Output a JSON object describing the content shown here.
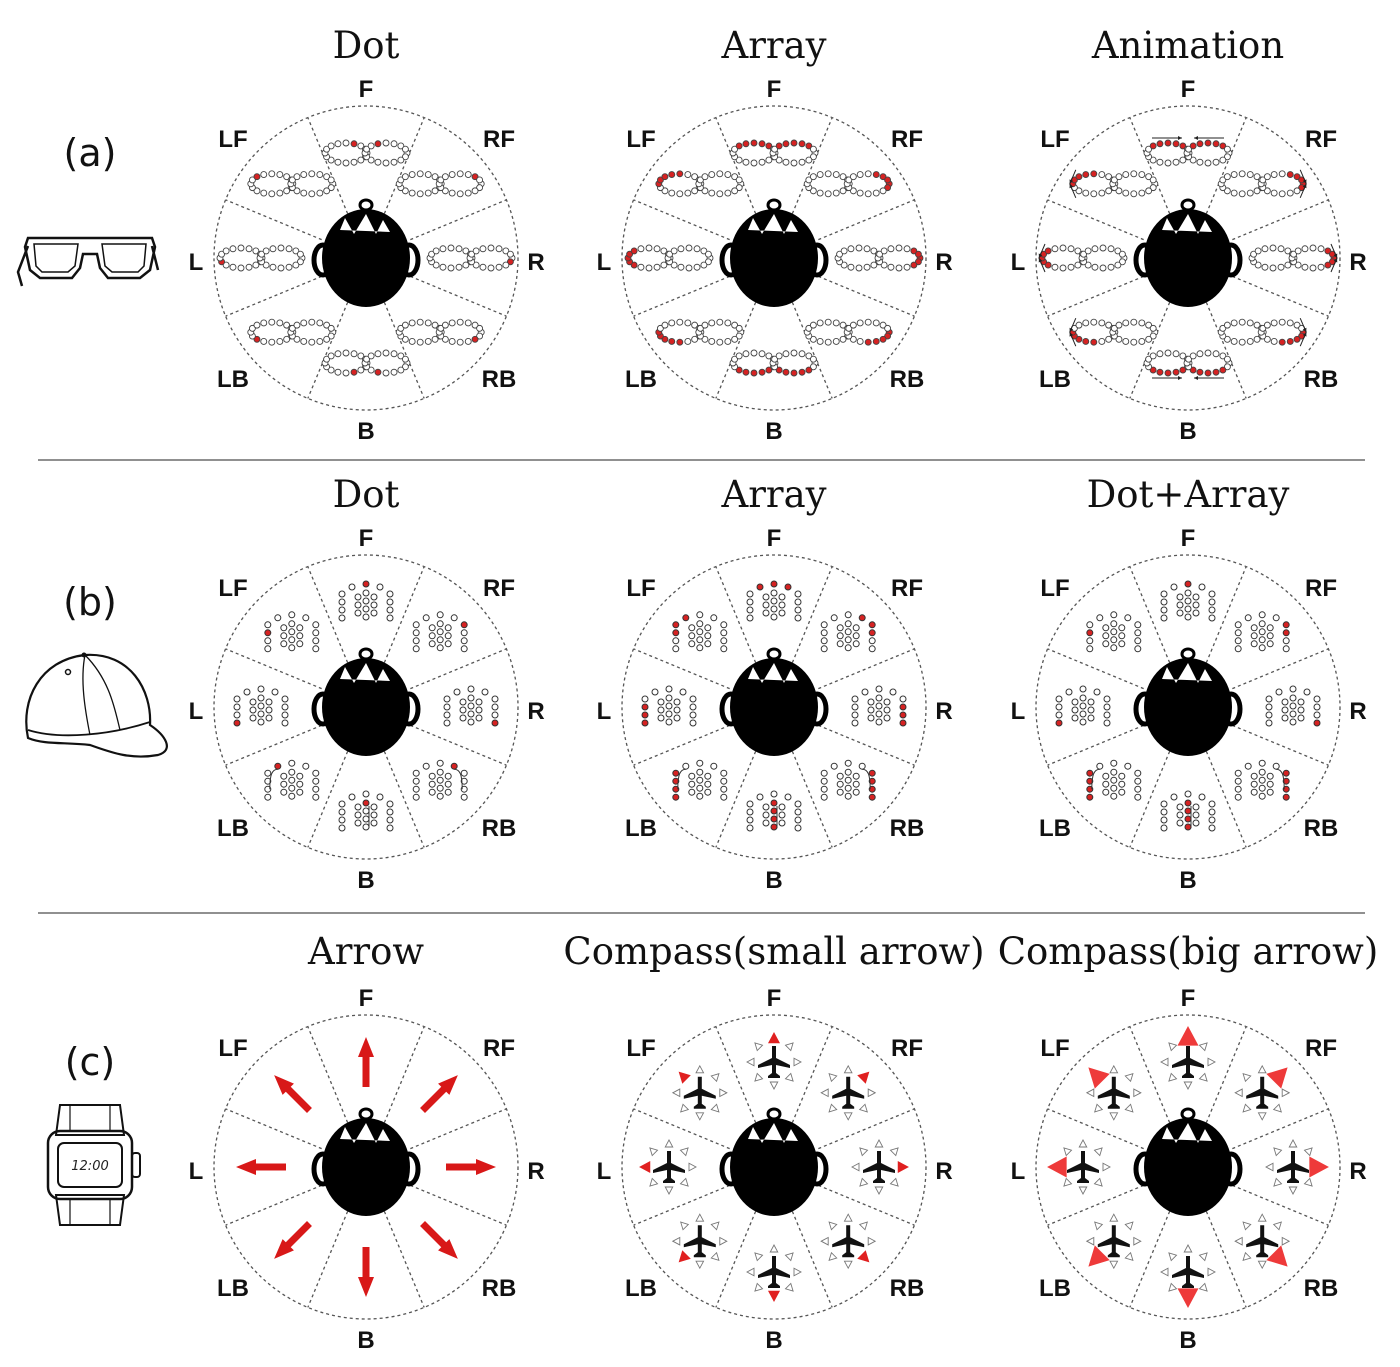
{
  "colors": {
    "accent": "#e02020",
    "dot_active": "#d62222",
    "ink": "#111111",
    "dashed_line": "#555555"
  },
  "direction_labels": [
    "F",
    "RF",
    "R",
    "RB",
    "B",
    "LB",
    "L",
    "LF"
  ],
  "rows": [
    {
      "label": "(a)",
      "device_icon": "glasses-icon",
      "panels": [
        {
          "title": "Dot",
          "style": "glasses-dot"
        },
        {
          "title": "Array",
          "style": "glasses-array"
        },
        {
          "title": "Animation",
          "style": "glasses-animation"
        }
      ]
    },
    {
      "label": "(b)",
      "device_icon": "cap-icon",
      "panels": [
        {
          "title": "Dot",
          "style": "cap-dot"
        },
        {
          "title": "Array",
          "style": "cap-array"
        },
        {
          "title": "Dot+Array",
          "style": "cap-dotarray"
        }
      ]
    },
    {
      "label": "(c)",
      "device_icon": "watch-icon",
      "watch_time": "12:00",
      "panels": [
        {
          "title": "Arrow",
          "style": "arrow"
        },
        {
          "title": "Compass(small arrow)",
          "style": "compass-small"
        },
        {
          "title": "Compass(big arrow)",
          "style": "compass-big"
        }
      ]
    }
  ]
}
